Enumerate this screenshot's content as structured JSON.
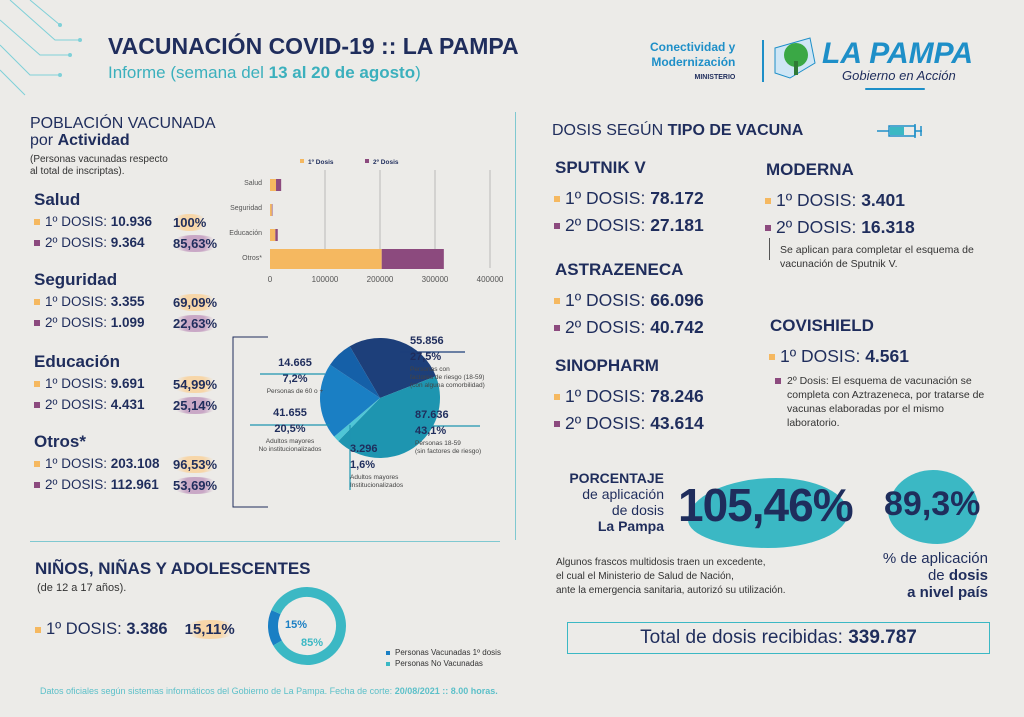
{
  "header": {
    "title": "VACUNACIÓN COVID-19 :: LA PAMPA",
    "subtitle_pre": "Informe (semana del ",
    "subtitle_bold": "13 al 20 de agosto",
    "subtitle_post": ")"
  },
  "logo": {
    "ministry_line1": "Conectividad y",
    "ministry_line2": "Modernización",
    "ministry_line3": "MINISTERIO",
    "brand": "LA PAMPA",
    "tagline": "Gobierno en Acción"
  },
  "activity": {
    "title1": "POBLACIÓN VACUNADA",
    "title2_pre": "por ",
    "title2_bold": "Actividad",
    "note1": "(Personas vacunadas respecto",
    "note2": "al total de inscriptas).",
    "groups": [
      {
        "name": "Salud",
        "d1_label": "1º DOSIS:",
        "d1": "10.936",
        "p1": "100%",
        "d2_label": "2º DOSIS:",
        "d2": "9.364",
        "p2": "85,63%"
      },
      {
        "name": "Seguridad",
        "d1_label": "1º DOSIS:",
        "d1": "3.355",
        "p1": "69,09%",
        "d2_label": "2º DOSIS:",
        "d2": "1.099",
        "p2": "22,63%"
      },
      {
        "name": "Educación",
        "d1_label": "1º DOSIS:",
        "d1": "9.691",
        "p1": "54,99%",
        "d2_label": "2º DOSIS:",
        "d2": "4.431",
        "p2": "25,14%"
      },
      {
        "name": "Otros*",
        "d1_label": "1º DOSIS:",
        "d1": "203.108",
        "p1": "96,53%",
        "d2_label": "2º DOSIS:",
        "d2": "112.961",
        "p2": "53,69%"
      }
    ]
  },
  "chart_data": [
    {
      "type": "bar",
      "orientation": "horizontal-stacked",
      "categories": [
        "Salud",
        "Seguridad",
        "Educación",
        "Otros*"
      ],
      "series": [
        {
          "name": "1º Dosis",
          "color": "#f5b860",
          "values": [
            10936,
            3355,
            9691,
            203108
          ]
        },
        {
          "name": "2º Dosis",
          "color": "#8c4a7e",
          "values": [
            9364,
            1099,
            4431,
            112961
          ]
        }
      ],
      "xlim": [
        0,
        400000
      ],
      "xticks": [
        "0",
        "100000",
        "200000",
        "300000",
        "400000"
      ],
      "legend": "top",
      "grid": true
    },
    {
      "type": "pie",
      "slices": [
        {
          "value": "55.856",
          "pct": "27,5%",
          "num": 55856,
          "label": "Personas con factores de riesgo (18-59) (con alguna comorbilidad)",
          "l1": "Personas con",
          "l2": "factores de riesgo (18-59)",
          "l3": "(con alguna comorbilidad)",
          "color": "#1d3f7a"
        },
        {
          "value": "87.636",
          "pct": "43,1%",
          "num": 87636,
          "l1": "Personas 18-59",
          "l2": "(sin factores de riesgo)",
          "color": "#1e95b0"
        },
        {
          "value": "3.296",
          "pct": "1,6%",
          "num": 3296,
          "l1": "Adultos mayores",
          "l2": "Institucionalizados",
          "color": "#4fc6d6"
        },
        {
          "value": "41.655",
          "pct": "20,5%",
          "num": 41655,
          "l1": "Adultos mayores",
          "l2": "No institucionalizados",
          "color": "#1a7fc4"
        },
        {
          "value": "14.665",
          "pct": "7,2%",
          "num": 14665,
          "l1": "Personas de 60 o +",
          "color": "#1560a8"
        }
      ]
    },
    {
      "type": "pie",
      "variant": "donut",
      "slices": [
        {
          "name": "Personas Vacunadas 1º dosis",
          "pct": 15,
          "label": "15%",
          "color": "#1a7fc4"
        },
        {
          "name": "Personas No Vacunadas",
          "pct": 85,
          "label": "85%",
          "color": "#3bb8c4"
        }
      ]
    }
  ],
  "kids": {
    "title": "NIÑOS, NIÑAS Y ADOLESCENTES",
    "note": "(de 12 a 17 años).",
    "d1_label": "1º DOSIS:",
    "d1": "3.386",
    "p1": "15,11%"
  },
  "vaccines": {
    "title_pre": "DOSIS SEGÚN ",
    "title_bold": "TIPO DE VACUNA",
    "sputnik": {
      "name": "SPUTNIK V",
      "d1_label": "1º DOSIS:",
      "d1": "78.172",
      "d2_label": "2º DOSIS:",
      "d2": "27.181"
    },
    "astrazeneca": {
      "name": "ASTRAZENECA",
      "d1_label": "1º DOSIS:",
      "d1": "66.096",
      "d2_label": "2º DOSIS:",
      "d2": "40.742"
    },
    "sinopharm": {
      "name": "SINOPHARM",
      "d1_label": "1º DOSIS:",
      "d1": "78.246",
      "d2_label": "2º DOSIS:",
      "d2": "43.614"
    },
    "moderna": {
      "name": "MODERNA",
      "d1_label": "1º DOSIS:",
      "d1": "3.401",
      "d2_label": "2º DOSIS:",
      "d2": "16.318",
      "note": "Se aplican para completar el esquema de vacunación de Sputnik V."
    },
    "covishield": {
      "name": "COVISHIELD",
      "d1_label": "1º DOSIS:",
      "d1": "4.561",
      "note": "2º Dosis: El esquema de vacunación se completa con Aztrazeneca, por tratarse de vacunas elaboradas por el mismo laboratorio."
    }
  },
  "percent": {
    "l1": "PORCENTAJE",
    "l2": "de aplicación",
    "l3": "de dosis",
    "l4": "La Pampa",
    "value_lp": "105,46%",
    "value_country": "89,3%",
    "note1": "Algunos frascos multidosis traen un excedente,",
    "note2": "el cual el Ministerio de Salud de Nación,",
    "note3": "ante la emergencia sanitaria, autorizó su utilización.",
    "c1": "% de aplicación",
    "c2_pre": "de ",
    "c2_bold": "dosis",
    "c3": "a nivel país"
  },
  "total": {
    "label": "Total de dosis recibidas: ",
    "value": "339.787"
  },
  "footer": {
    "text": "Datos oficiales según sistemas informáticos del Gobierno de La Pampa. Fecha de corte: ",
    "bold": "20/08/2021 :: 8.00 horas."
  }
}
